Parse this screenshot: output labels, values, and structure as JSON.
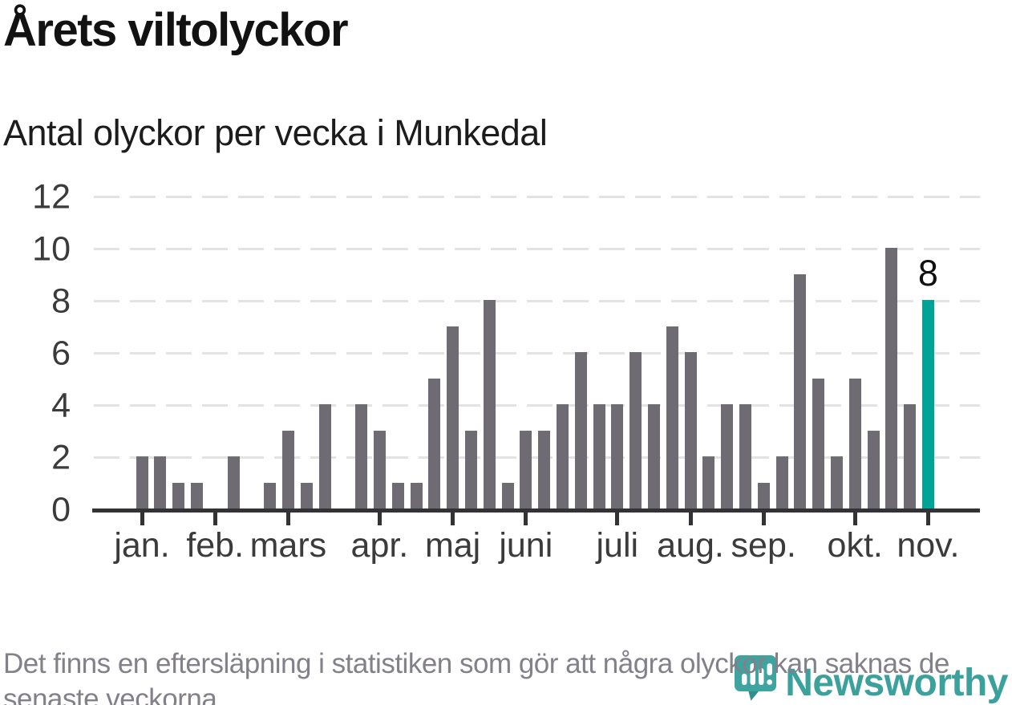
{
  "header": {
    "title": "Årets viltolyckor",
    "subtitle": "Antal olyckor per vecka i Munkedal"
  },
  "chart_data": {
    "type": "bar",
    "title": "Årets viltolyckor",
    "subtitle": "Antal olyckor per vecka i Munkedal",
    "x_unit": "vecka (weekly bars, januari–november)",
    "values": [
      2,
      2,
      1,
      1,
      0,
      2,
      0,
      1,
      3,
      1,
      4,
      0,
      4,
      3,
      1,
      1,
      5,
      7,
      3,
      8,
      1,
      3,
      3,
      4,
      6,
      4,
      4,
      6,
      4,
      7,
      6,
      2,
      4,
      4,
      1,
      2,
      9,
      5,
      2,
      5,
      3,
      10,
      4,
      8
    ],
    "highlight_index": 43,
    "highlight_label": "8",
    "ylim": [
      0,
      12
    ],
    "yticks": [
      0,
      2,
      4,
      6,
      8,
      10,
      12
    ],
    "month_ticks": [
      {
        "label": "jan.",
        "week": 0
      },
      {
        "label": "feb.",
        "week": 4
      },
      {
        "label": "mars",
        "week": 8
      },
      {
        "label": "apr.",
        "week": 13
      },
      {
        "label": "maj",
        "week": 17
      },
      {
        "label": "juni",
        "week": 21
      },
      {
        "label": "juli",
        "week": 26
      },
      {
        "label": "aug.",
        "week": 30
      },
      {
        "label": "sep.",
        "week": 34
      },
      {
        "label": "okt.",
        "week": 39
      },
      {
        "label": "nov.",
        "week": 43
      }
    ],
    "grid": "dashed-horizontal",
    "legend": "none",
    "colors": {
      "bar": "#6f6b72",
      "highlight": "#00a396",
      "axis": "#333336",
      "gridline": "#e3e3e3",
      "labels": "#3b3b3b"
    }
  },
  "footer": {
    "lines": [
      "Det finns en eftersläpning i statistiken som gör att några olyckor kan saknas de",
      "senaste veckorna."
    ]
  },
  "logo": {
    "text": "Newsworthy",
    "color": "#3ba19c",
    "icon": "newsworthy-pin-barchart-icon"
  }
}
